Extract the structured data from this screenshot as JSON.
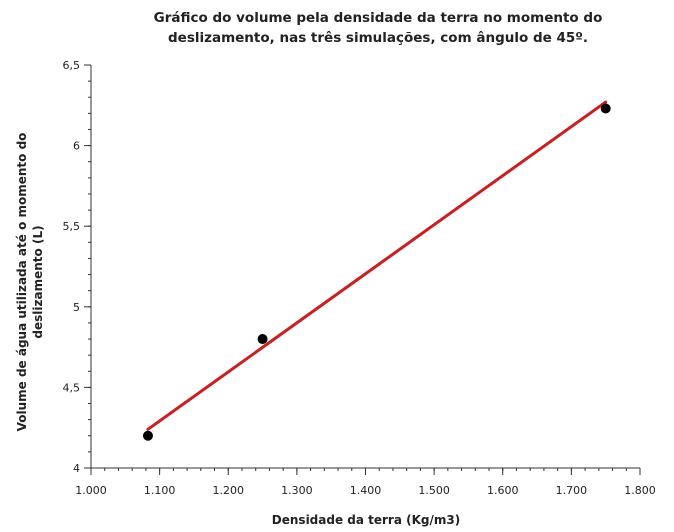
{
  "chart_data": {
    "type": "scatter",
    "title_lines": [
      "Gráfico do volume pela densidade da terra no momento do",
      "deslizamento, nas três simulações, com ângulo de 45º."
    ],
    "xlabel": "Densidade da terra (Kg/m3)",
    "ylabel_lines": [
      "Volume de água utilizada até o momento do",
      "deslizamento (L)"
    ],
    "xlim": [
      1000,
      1800
    ],
    "ylim": [
      4,
      6.5
    ],
    "x_ticks": [
      1000,
      1100,
      1200,
      1300,
      1400,
      1500,
      1600,
      1700,
      1800
    ],
    "x_tick_labels": [
      "1.000",
      "1.100",
      "1.200",
      "1.300",
      "1.400",
      "1.500",
      "1.600",
      "1.700",
      "1.800"
    ],
    "y_ticks": [
      4,
      4.5,
      5,
      5.5,
      6,
      6.5
    ],
    "y_tick_labels": [
      "4",
      "4,5",
      "5",
      "5,5",
      "6",
      "6,5"
    ],
    "x_minor_step": 20,
    "y_minor_step": 0.1,
    "points": [
      {
        "x": 1083,
        "y": 4.2
      },
      {
        "x": 1250,
        "y": 4.8
      },
      {
        "x": 1750,
        "y": 6.23
      }
    ],
    "trendline": {
      "x": [
        1083,
        1750
      ],
      "y": [
        4.24,
        6.27
      ]
    },
    "grid": false,
    "colors": {
      "points": "#000000",
      "trendline": "#cc1e1e",
      "axes": "#333333"
    }
  }
}
